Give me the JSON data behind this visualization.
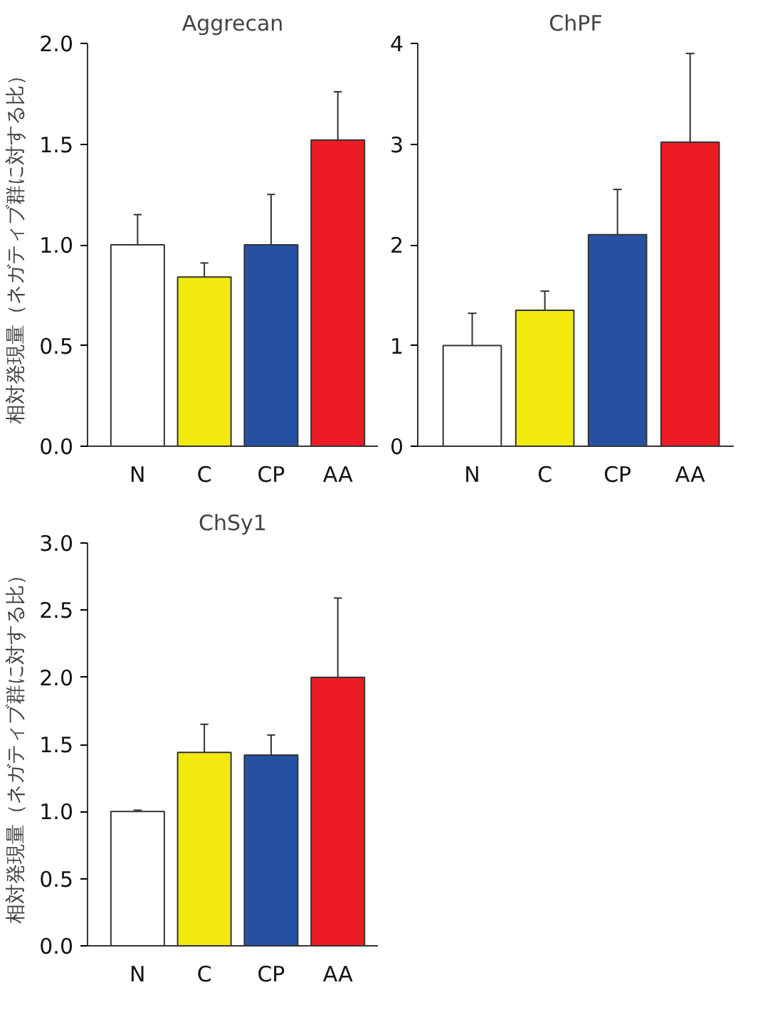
{
  "chart_data": [
    {
      "type": "bar",
      "title": "Aggrecan",
      "ylabel": "相対発現量（ネガティブ群に対する比）",
      "categories": [
        "N",
        "C",
        "CP",
        "AA"
      ],
      "values": [
        1.0,
        0.84,
        1.0,
        1.52
      ],
      "colors": [
        "#ffffff",
        "#f2ea0f",
        "#2651a3",
        "#ed1c24"
      ],
      "errors": [
        [
          1.0,
          1.15
        ],
        [
          0.84,
          0.91
        ],
        [
          1.0,
          1.25
        ],
        [
          1.52,
          1.76
        ]
      ],
      "ylim": [
        0,
        2.0
      ],
      "yticks": [
        {
          "value": 0,
          "label": "0.0"
        },
        {
          "value": 0.5,
          "label": "0.5"
        },
        {
          "value": 1.0,
          "label": "1.0"
        },
        {
          "value": 1.5,
          "label": "1.5"
        },
        {
          "value": 2.0,
          "label": "2.0"
        }
      ],
      "grid": false,
      "legend": false
    },
    {
      "type": "bar",
      "title": "ChPF",
      "categories": [
        "N",
        "C",
        "CP",
        "AA"
      ],
      "values": [
        1.0,
        1.35,
        2.1,
        3.02
      ],
      "colors": [
        "#ffffff",
        "#f2ea0f",
        "#2651a3",
        "#ed1c24"
      ],
      "errors": [
        [
          1.0,
          1.32
        ],
        [
          1.35,
          1.54
        ],
        [
          2.1,
          2.55
        ],
        [
          3.02,
          3.9
        ]
      ],
      "ylim": [
        0,
        4
      ],
      "yticks": [
        0,
        1,
        2,
        3,
        4
      ],
      "grid": false,
      "legend": false
    },
    {
      "type": "bar",
      "title": "ChSy1",
      "ylabel": "相対発現量（ネガティブ群に対する比）",
      "categories": [
        "N",
        "C",
        "CP",
        "AA"
      ],
      "values": [
        1.0,
        1.44,
        1.42,
        2.0
      ],
      "colors": [
        "#ffffff",
        "#f2ea0f",
        "#2651a3",
        "#ed1c24"
      ],
      "errors": [
        [
          1.0,
          1.01
        ],
        [
          1.44,
          1.65
        ],
        [
          1.42,
          1.57
        ],
        [
          2.0,
          2.59
        ]
      ],
      "ylim": [
        0,
        3.0
      ],
      "yticks": [
        {
          "value": 0,
          "label": "0.0"
        },
        {
          "value": 0.5,
          "label": "0.5"
        },
        {
          "value": 1.0,
          "label": "1.0"
        },
        {
          "value": 1.5,
          "label": "1.5"
        },
        {
          "value": 2.0,
          "label": "2.0"
        },
        {
          "value": 2.5,
          "label": "2.5"
        },
        {
          "value": 3.0,
          "label": "3.0"
        }
      ],
      "grid": false,
      "legend": false
    }
  ]
}
